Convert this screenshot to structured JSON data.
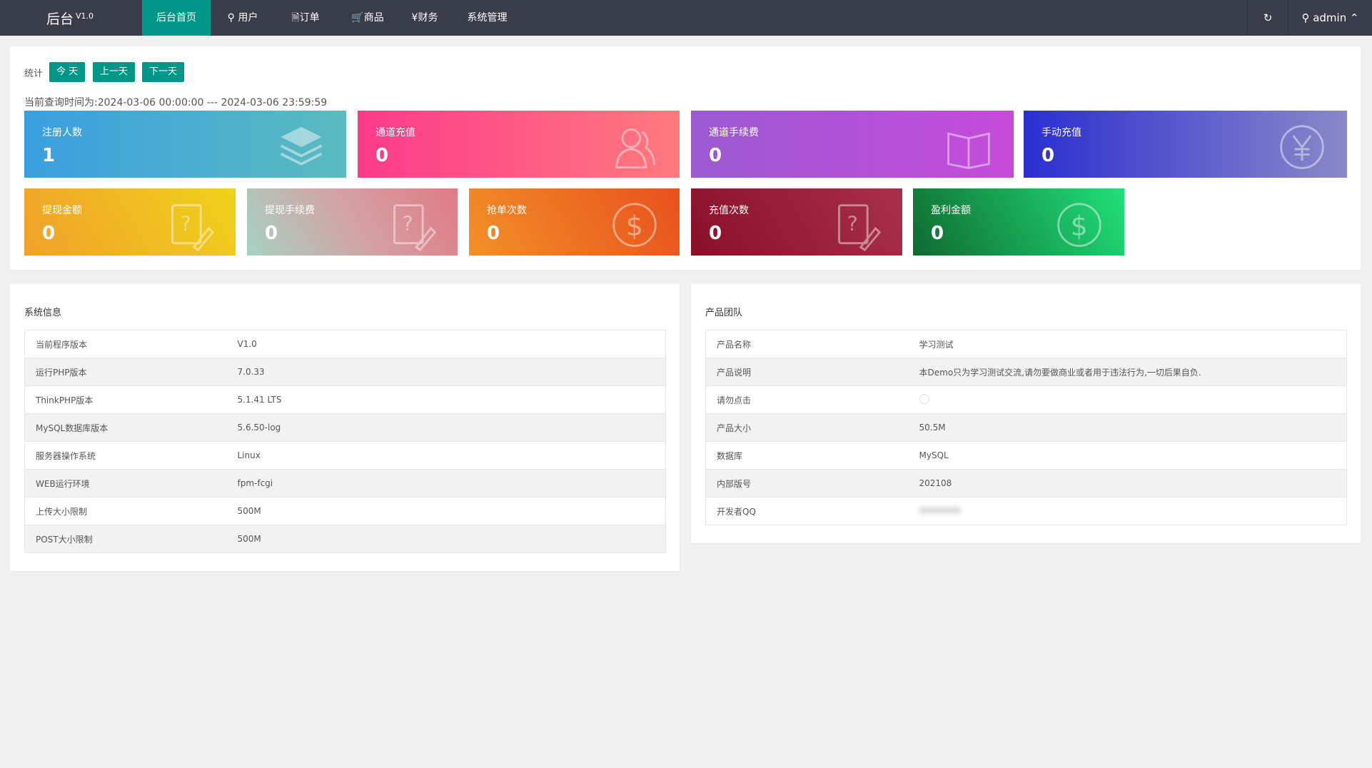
{
  "nav": {
    "logo": "后台",
    "version": "V1.0",
    "items": [
      {
        "label": "后台首页",
        "icon": "",
        "active": true
      },
      {
        "label": "用户",
        "icon": "user-icon"
      },
      {
        "label": "订单",
        "icon": "document-icon"
      },
      {
        "label": "商品",
        "icon": "cart-icon"
      },
      {
        "label": "财务",
        "icon": "yen-icon"
      },
      {
        "label": "系统管理",
        "icon": ""
      }
    ],
    "user": "admin"
  },
  "stats": {
    "label": "统计",
    "buttons": [
      "今 天",
      "上一天",
      "下一天"
    ],
    "query_time": "当前查询时间为:2024-03-06 00:00:00 --- 2024-03-06 23:59:59",
    "cards": [
      {
        "title": "注册人数",
        "value": "1",
        "icon": "layers-icon"
      },
      {
        "title": "通道充值",
        "value": "0",
        "icon": "users-icon"
      },
      {
        "title": "通道手续费",
        "value": "0",
        "icon": "book-icon"
      },
      {
        "title": "手动充值",
        "value": "0",
        "icon": "yen-circle-icon"
      },
      {
        "title": "提现金额",
        "value": "0",
        "icon": "question-edit-icon"
      },
      {
        "title": "提现手续费",
        "value": "0",
        "icon": "question-edit-icon"
      },
      {
        "title": "抢单次数",
        "value": "0",
        "icon": "dollar-circle-icon"
      },
      {
        "title": "充值次数",
        "value": "0",
        "icon": "question-edit-icon"
      },
      {
        "title": "盈利金额",
        "value": "0",
        "icon": "dollar-circle-icon"
      }
    ]
  },
  "system": {
    "title": "系统信息",
    "rows": [
      [
        "当前程序版本",
        "V1.0"
      ],
      [
        "运行PHP版本",
        "7.0.33"
      ],
      [
        "ThinkPHP版本",
        "5.1.41 LTS"
      ],
      [
        "MySQL数据库版本",
        "5.6.50-log"
      ],
      [
        "服务器操作系统",
        "Linux"
      ],
      [
        "WEB运行环境",
        "fpm-fcgi"
      ],
      [
        "上传大小限制",
        "500M"
      ],
      [
        "POST大小限制",
        "500M"
      ]
    ]
  },
  "team": {
    "title": "产品团队",
    "rows": [
      [
        "产品名称",
        "学习测试"
      ],
      [
        "产品说明",
        "本Demo只为学习测试交流,请勿要做商业或者用于违法行为,一切后果自负."
      ],
      [
        "请勿点击",
        ""
      ],
      [
        "产品大小",
        "50.5M"
      ],
      [
        "数据库",
        "MySQL"
      ],
      [
        "内部版号",
        "202108"
      ],
      [
        "开发者QQ",
        ""
      ]
    ]
  }
}
